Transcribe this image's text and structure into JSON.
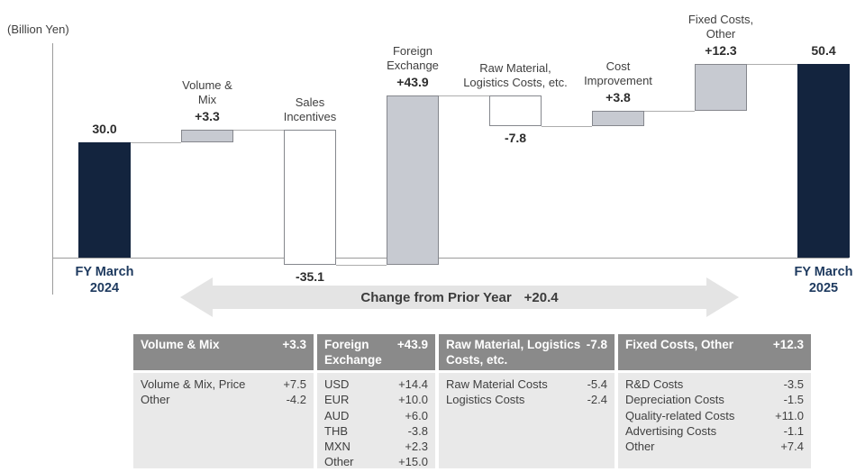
{
  "unit_label": "(Billion Yen)",
  "arrow": {
    "label": "Change from Prior Year",
    "value": "+20.4"
  },
  "colors": {
    "total_bar": "#13243E",
    "increase_bar_fill": "#C7CAD1",
    "bar_border": "#85878D",
    "connector": "#ADADAD",
    "axis": "#9B9B9B",
    "arrow_fill": "#E4E4E4",
    "table_header_bg": "#8A8A8A",
    "table_body_bg": "#E9E9E9",
    "navy_text": "#1E3A5F",
    "text": "#3F3F3F"
  },
  "chart_data": {
    "type": "bar",
    "subtype": "waterfall",
    "title": "",
    "xlabel": "",
    "ylabel": "(Billion Yen)",
    "ylim": [
      -5,
      55
    ],
    "grid": false,
    "legend_position": "none",
    "steps": [
      {
        "name": "FY March 2024",
        "type": "total",
        "value": 30.0,
        "value_label": "30.0",
        "label_lines": [],
        "tick_lines": [
          "FY March",
          "2024"
        ],
        "value_pos": "above",
        "bar_style": "total"
      },
      {
        "name": "Volume & Mix",
        "type": "delta",
        "value": 3.3,
        "value_label": "+3.3",
        "label_lines": [
          "Volume &",
          "Mix"
        ],
        "value_pos": "above",
        "bar_style": "increase"
      },
      {
        "name": "Sales Incentives",
        "type": "delta",
        "value": -35.1,
        "value_label": "-35.1",
        "label_lines": [
          "Sales",
          "Incentives"
        ],
        "value_pos": "below",
        "bar_style": "decrease"
      },
      {
        "name": "Foreign Exchange",
        "type": "delta",
        "value": 43.9,
        "value_label": "+43.9",
        "label_lines": [
          "Foreign",
          "Exchange"
        ],
        "value_pos": "above",
        "bar_style": "increase"
      },
      {
        "name": "Raw Material, Logistics Costs, etc.",
        "type": "delta",
        "value": -7.8,
        "value_label": "-7.8",
        "label_lines": [
          "Raw Material,",
          "Logistics Costs, etc."
        ],
        "value_pos": "below",
        "bar_style": "decrease"
      },
      {
        "name": "Cost Improvement",
        "type": "delta",
        "value": 3.8,
        "value_label": "+3.8",
        "label_lines": [
          "Cost",
          "Improvement"
        ],
        "value_pos": "above",
        "bar_style": "increase"
      },
      {
        "name": "Fixed Costs, Other",
        "type": "delta",
        "value": 12.3,
        "value_label": "+12.3",
        "label_lines": [
          "Fixed Costs,",
          "Other"
        ],
        "value_pos": "above",
        "bar_style": "increase"
      },
      {
        "name": "FY March 2025",
        "type": "total",
        "value": 50.4,
        "value_label": "50.4",
        "label_lines": [],
        "tick_lines": [
          "FY March",
          "2025"
        ],
        "value_pos": "above",
        "bar_style": "total"
      }
    ]
  },
  "table": {
    "sections": [
      {
        "title": "Volume & Mix",
        "value": "+3.3",
        "rows": [
          [
            "Volume & Mix, Price",
            "+7.5"
          ],
          [
            "Other",
            "-4.2"
          ]
        ]
      },
      {
        "title": "Foreign Exchange",
        "value": "+43.9",
        "rows": [
          [
            "USD",
            "+14.4"
          ],
          [
            "EUR",
            "+10.0"
          ],
          [
            "AUD",
            "+6.0"
          ],
          [
            "THB",
            "-3.8"
          ],
          [
            "MXN",
            "+2.3"
          ],
          [
            "Other",
            "+15.0"
          ]
        ]
      },
      {
        "title": "Raw Material, Logistics Costs, etc.",
        "value": "-7.8",
        "rows": [
          [
            "Raw Material Costs",
            "-5.4"
          ],
          [
            "Logistics Costs",
            "-2.4"
          ]
        ]
      },
      {
        "title": "Fixed Costs, Other",
        "value": "+12.3",
        "rows": [
          [
            "R&D Costs",
            "-3.5"
          ],
          [
            "Depreciation Costs",
            "-1.5"
          ],
          [
            "Quality-related Costs",
            "+11.0"
          ],
          [
            "Advertising Costs",
            "-1.1"
          ],
          [
            "Other",
            "+7.4"
          ]
        ]
      }
    ]
  }
}
